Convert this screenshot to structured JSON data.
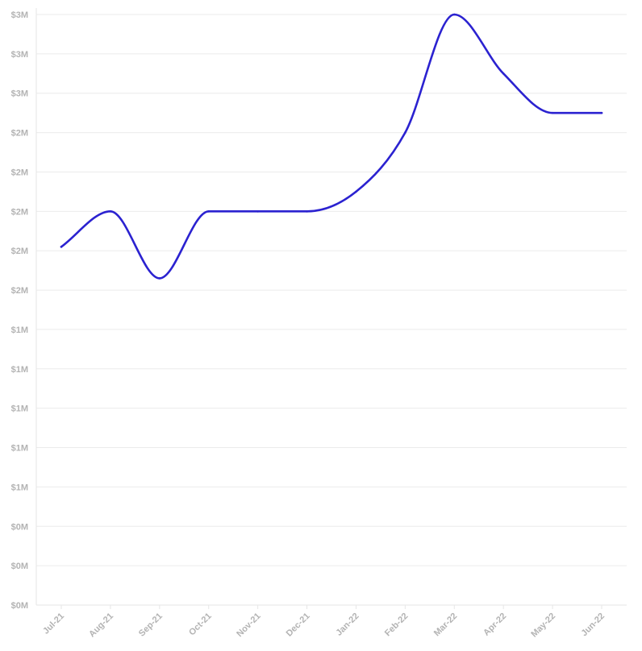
{
  "chart_data": {
    "type": "line",
    "title": "",
    "xlabel": "",
    "ylabel": "",
    "grid": true,
    "legend": "none",
    "x": [
      "Jul-21",
      "Aug-21",
      "Sep-21",
      "Oct-21",
      "Nov-21",
      "Dec-21",
      "Jan-22",
      "Feb-22",
      "Mar-22",
      "Apr-22",
      "May-22",
      "Jun-22"
    ],
    "series": [
      {
        "color": "#2b22d0",
        "values": [
          1.82,
          2.0,
          1.66,
          2.0,
          2.0,
          2.0,
          2.1,
          2.4,
          3.0,
          2.7,
          2.5,
          2.5
        ]
      }
    ],
    "ylim": [
      0,
      3.0
    ],
    "ytick_values": [
      0,
      0.2,
      0.4,
      0.6,
      0.8,
      1.0,
      1.2,
      1.4,
      1.6,
      1.8,
      2.0,
      2.2,
      2.4,
      2.6,
      2.8,
      3.0
    ],
    "ytick_labels": [
      "$0M",
      "$0M",
      "$0M",
      "$1M",
      "$1M",
      "$1M",
      "$1M",
      "$1M",
      "$2M",
      "$2M",
      "$2M",
      "$2M",
      "$2M",
      "$3M",
      "$3M",
      "$3M"
    ]
  }
}
